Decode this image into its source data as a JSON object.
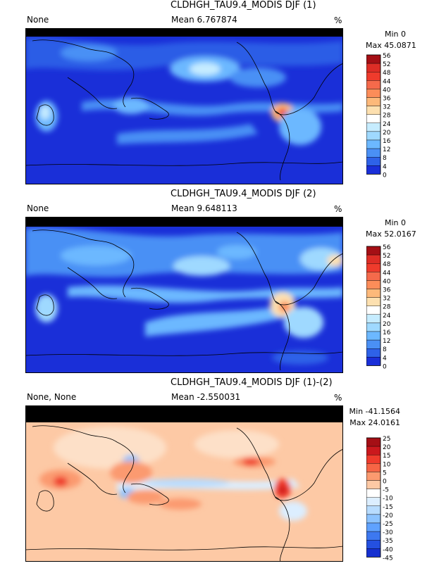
{
  "chart_data": [
    {
      "type": "heatmap",
      "title": "CLDHGH_TAU9.4_MODIS DJF (1)",
      "left_label": "None",
      "mean_label": "Mean 6.767874",
      "units": "%",
      "min_label": "Min 0",
      "max_label": "Max 45.0871",
      "colorbar_ticks": [
        "56",
        "52",
        "48",
        "44",
        "40",
        "36",
        "32",
        "28",
        "24",
        "20",
        "16",
        "12",
        "8",
        "4",
        "0"
      ],
      "colorbar_colors": [
        "#a50f15",
        "#de2d26",
        "#ef3b2c",
        "#f56a4b",
        "#fc8d59",
        "#fdb97a",
        "#fde0b0",
        "#ffffff",
        "#c6ecff",
        "#9fd9ff",
        "#6cb8ff",
        "#4a90f5",
        "#2e62e8",
        "#1a2fd8",
        "#0a10c8"
      ],
      "colormap": "sequential",
      "mean": 6.767874,
      "min": 0,
      "max": 45.0871,
      "colorbar_range": [
        0,
        56
      ]
    },
    {
      "type": "heatmap",
      "title": "CLDHGH_TAU9.4_MODIS DJF (2)",
      "left_label": "None",
      "mean_label": "Mean 9.648113",
      "units": "%",
      "min_label": "Min 0",
      "max_label": "Max 52.0167",
      "colorbar_ticks": [
        "56",
        "52",
        "48",
        "44",
        "40",
        "36",
        "32",
        "28",
        "24",
        "20",
        "16",
        "12",
        "8",
        "4",
        "0"
      ],
      "colorbar_colors": [
        "#a50f15",
        "#de2d26",
        "#ef3b2c",
        "#f56a4b",
        "#fc8d59",
        "#fdb97a",
        "#fde0b0",
        "#ffffff",
        "#c6ecff",
        "#9fd9ff",
        "#6cb8ff",
        "#4a90f5",
        "#2e62e8",
        "#1a2fd8",
        "#0a10c8"
      ],
      "colormap": "sequential",
      "mean": 9.648113,
      "min": 0,
      "max": 52.0167,
      "colorbar_range": [
        0,
        56
      ]
    },
    {
      "type": "heatmap",
      "title": "CLDHGH_TAU9.4_MODIS DJF (1)-(2)",
      "left_label": "None, None",
      "mean_label": "Mean -2.550031",
      "units": "%",
      "min_label": "Min -41.1564",
      "max_label": "Max 24.0161",
      "colorbar_ticks": [
        "25",
        "20",
        "15",
        "10",
        "5",
        "0",
        "-5",
        "-10",
        "-15",
        "-20",
        "-25",
        "-30",
        "-35",
        "-40",
        "-45"
      ],
      "colorbar_colors": [
        "#a50f15",
        "#cb181d",
        "#ef3b2c",
        "#f66545",
        "#fb9a6f",
        "#fdc9a5",
        "#ffffff",
        "#dceeff",
        "#b8dcff",
        "#8cc3ff",
        "#5fa2ff",
        "#3d78f0",
        "#2450e0",
        "#1630d0",
        "#0a10c0"
      ],
      "colormap": "diverging",
      "mean": -2.550031,
      "min": -41.1564,
      "max": 24.0161,
      "colorbar_range": [
        -45,
        25
      ]
    }
  ]
}
